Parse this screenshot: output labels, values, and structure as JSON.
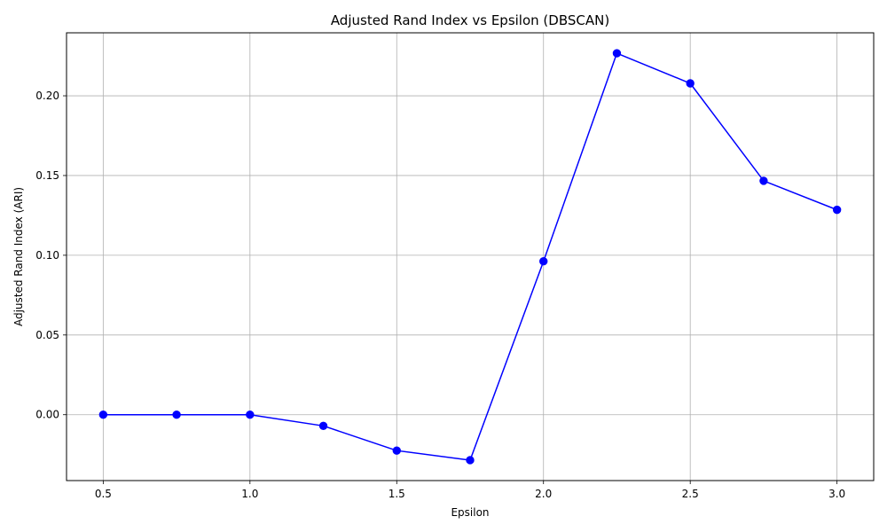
{
  "chart_data": {
    "type": "line",
    "title": "Adjusted Rand Index vs Epsilon (DBSCAN)",
    "xlabel": "Epsilon",
    "ylabel": "Adjusted Rand Index (ARI)",
    "x": [
      0.5,
      0.75,
      1.0,
      1.25,
      1.5,
      1.75,
      2.0,
      2.25,
      2.5,
      2.75,
      3.0
    ],
    "series": [
      {
        "values": [
          0.0,
          0.0,
          0.0,
          -0.007,
          -0.0225,
          -0.0285,
          0.0962,
          0.2267,
          0.2078,
          0.1467,
          0.1285
        ],
        "color": "#0000ff",
        "marker": "circle"
      }
    ],
    "xlim": [
      0.375,
      3.125
    ],
    "ylim": [
      -0.0413,
      0.2395
    ],
    "x_ticks": [
      "0.5",
      "1.0",
      "1.5",
      "2.0",
      "2.5",
      "3.0"
    ],
    "y_ticks": [
      "0.00",
      "0.05",
      "0.10",
      "0.15",
      "0.20"
    ],
    "grid": true,
    "colors": {
      "line": "#0000ff",
      "grid": "#b0b0b0",
      "axes": "#000000"
    }
  }
}
